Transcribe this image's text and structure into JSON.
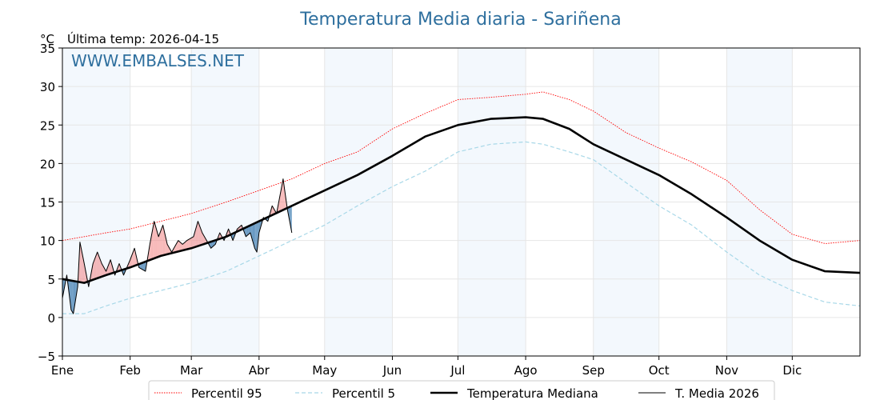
{
  "chart_data": {
    "type": "line",
    "title": "Temperatura Media diaria - Sariñena",
    "ylabel_unit": "°C",
    "subtitle": "Última temp: 2026-04-15",
    "watermark": "WWW.EMBALSES.NET",
    "ylim": [
      -5,
      35
    ],
    "yticks": [
      -5,
      0,
      5,
      10,
      15,
      20,
      25,
      30,
      35
    ],
    "ytick_labels": [
      "−5",
      "0",
      "5",
      "10",
      "15",
      "20",
      "25",
      "30",
      "35"
    ],
    "xlim_days": [
      0,
      365
    ],
    "months": [
      {
        "label": "Ene",
        "day": 0
      },
      {
        "label": "Feb",
        "day": 31
      },
      {
        "label": "Mar",
        "day": 59
      },
      {
        "label": "Abr",
        "day": 90
      },
      {
        "label": "May",
        "day": 120
      },
      {
        "label": "Jun",
        "day": 151
      },
      {
        "label": "Jul",
        "day": 181
      },
      {
        "label": "Ago",
        "day": 212
      },
      {
        "label": "Sep",
        "day": 243
      },
      {
        "label": "Oct",
        "day": 273
      },
      {
        "label": "Nov",
        "day": 304
      },
      {
        "label": "Dic",
        "day": 334
      }
    ],
    "shaded_months": [
      [
        0,
        31
      ],
      [
        59,
        90
      ],
      [
        120,
        151
      ],
      [
        181,
        212
      ],
      [
        243,
        273
      ],
      [
        304,
        334
      ]
    ],
    "grid": true,
    "legend_position": "bottom",
    "series": [
      {
        "name": "Percentil 95",
        "color": "#ff0000",
        "style": "dotted",
        "points": [
          [
            0,
            10
          ],
          [
            10,
            10.5
          ],
          [
            20,
            11
          ],
          [
            31,
            11.5
          ],
          [
            45,
            12.5
          ],
          [
            59,
            13.5
          ],
          [
            75,
            15
          ],
          [
            90,
            16.5
          ],
          [
            105,
            18
          ],
          [
            120,
            20
          ],
          [
            135,
            21.5
          ],
          [
            151,
            24.5
          ],
          [
            166,
            26.5
          ],
          [
            181,
            28.3
          ],
          [
            196,
            28.6
          ],
          [
            212,
            29
          ],
          [
            220,
            29.3
          ],
          [
            232,
            28.3
          ],
          [
            243,
            26.8
          ],
          [
            258,
            24
          ],
          [
            273,
            22
          ],
          [
            288,
            20.2
          ],
          [
            304,
            17.8
          ],
          [
            319,
            14
          ],
          [
            334,
            10.8
          ],
          [
            349,
            9.6
          ],
          [
            365,
            10
          ]
        ]
      },
      {
        "name": "Percentil 5",
        "color": "#a8d8e8",
        "style": "dashed",
        "points": [
          [
            0,
            0.5
          ],
          [
            10,
            0.5
          ],
          [
            20,
            1.5
          ],
          [
            31,
            2.5
          ],
          [
            45,
            3.5
          ],
          [
            59,
            4.5
          ],
          [
            75,
            6
          ],
          [
            90,
            8
          ],
          [
            105,
            10
          ],
          [
            120,
            12
          ],
          [
            135,
            14.5
          ],
          [
            151,
            17
          ],
          [
            166,
            19
          ],
          [
            181,
            21.5
          ],
          [
            196,
            22.5
          ],
          [
            212,
            22.8
          ],
          [
            220,
            22.5
          ],
          [
            232,
            21.5
          ],
          [
            243,
            20.5
          ],
          [
            258,
            17.5
          ],
          [
            273,
            14.5
          ],
          [
            288,
            12
          ],
          [
            304,
            8.5
          ],
          [
            319,
            5.5
          ],
          [
            334,
            3.5
          ],
          [
            349,
            2
          ],
          [
            365,
            1.5
          ]
        ]
      },
      {
        "name": "Temperatura Mediana",
        "color": "#000000",
        "style": "solid-thick",
        "points": [
          [
            0,
            5
          ],
          [
            10,
            4.5
          ],
          [
            20,
            5.5
          ],
          [
            31,
            6.5
          ],
          [
            45,
            8
          ],
          [
            59,
            9
          ],
          [
            75,
            10.5
          ],
          [
            90,
            12.5
          ],
          [
            105,
            14.5
          ],
          [
            120,
            16.5
          ],
          [
            135,
            18.5
          ],
          [
            151,
            21
          ],
          [
            166,
            23.5
          ],
          [
            181,
            25
          ],
          [
            196,
            25.8
          ],
          [
            212,
            26
          ],
          [
            220,
            25.8
          ],
          [
            232,
            24.5
          ],
          [
            243,
            22.5
          ],
          [
            258,
            20.5
          ],
          [
            273,
            18.5
          ],
          [
            288,
            16
          ],
          [
            304,
            13
          ],
          [
            319,
            10
          ],
          [
            334,
            7.5
          ],
          [
            349,
            6
          ],
          [
            365,
            5.8
          ]
        ]
      },
      {
        "name": "T. Media 2026",
        "color": "#000000",
        "style": "solid-thin",
        "points": [
          [
            0,
            2.5
          ],
          [
            2,
            5.5
          ],
          [
            4,
            1
          ],
          [
            5,
            0.5
          ],
          [
            7,
            4
          ],
          [
            8,
            9.8
          ],
          [
            10,
            7
          ],
          [
            12,
            4
          ],
          [
            14,
            7
          ],
          [
            16,
            8.5
          ],
          [
            18,
            7
          ],
          [
            20,
            6
          ],
          [
            22,
            7.5
          ],
          [
            24,
            5.5
          ],
          [
            26,
            7
          ],
          [
            28,
            5.5
          ],
          [
            31,
            7.5
          ],
          [
            33,
            9
          ],
          [
            35,
            6.5
          ],
          [
            38,
            6
          ],
          [
            40,
            9.5
          ],
          [
            42,
            12.5
          ],
          [
            44,
            10.5
          ],
          [
            46,
            12
          ],
          [
            48,
            9.5
          ],
          [
            50,
            8.5
          ],
          [
            53,
            10
          ],
          [
            55,
            9.5
          ],
          [
            57,
            10
          ],
          [
            60,
            10.5
          ],
          [
            62,
            12.5
          ],
          [
            64,
            11
          ],
          [
            66,
            10
          ],
          [
            68,
            9
          ],
          [
            70,
            9.5
          ],
          [
            72,
            11
          ],
          [
            74,
            10
          ],
          [
            76,
            11.5
          ],
          [
            78,
            10
          ],
          [
            80,
            11.5
          ],
          [
            82,
            12
          ],
          [
            84,
            10.5
          ],
          [
            86,
            11
          ],
          [
            88,
            9
          ],
          [
            89,
            8.5
          ],
          [
            90,
            11
          ],
          [
            92,
            13
          ],
          [
            94,
            12.5
          ],
          [
            96,
            14.5
          ],
          [
            98,
            13.5
          ],
          [
            100,
            16.5
          ],
          [
            101,
            18
          ],
          [
            102,
            16
          ],
          [
            103,
            14
          ],
          [
            104,
            12.5
          ],
          [
            105,
            11
          ]
        ]
      }
    ],
    "anomaly_fill": {
      "above_color": "#f08080",
      "below_color": "#4682b4"
    }
  }
}
